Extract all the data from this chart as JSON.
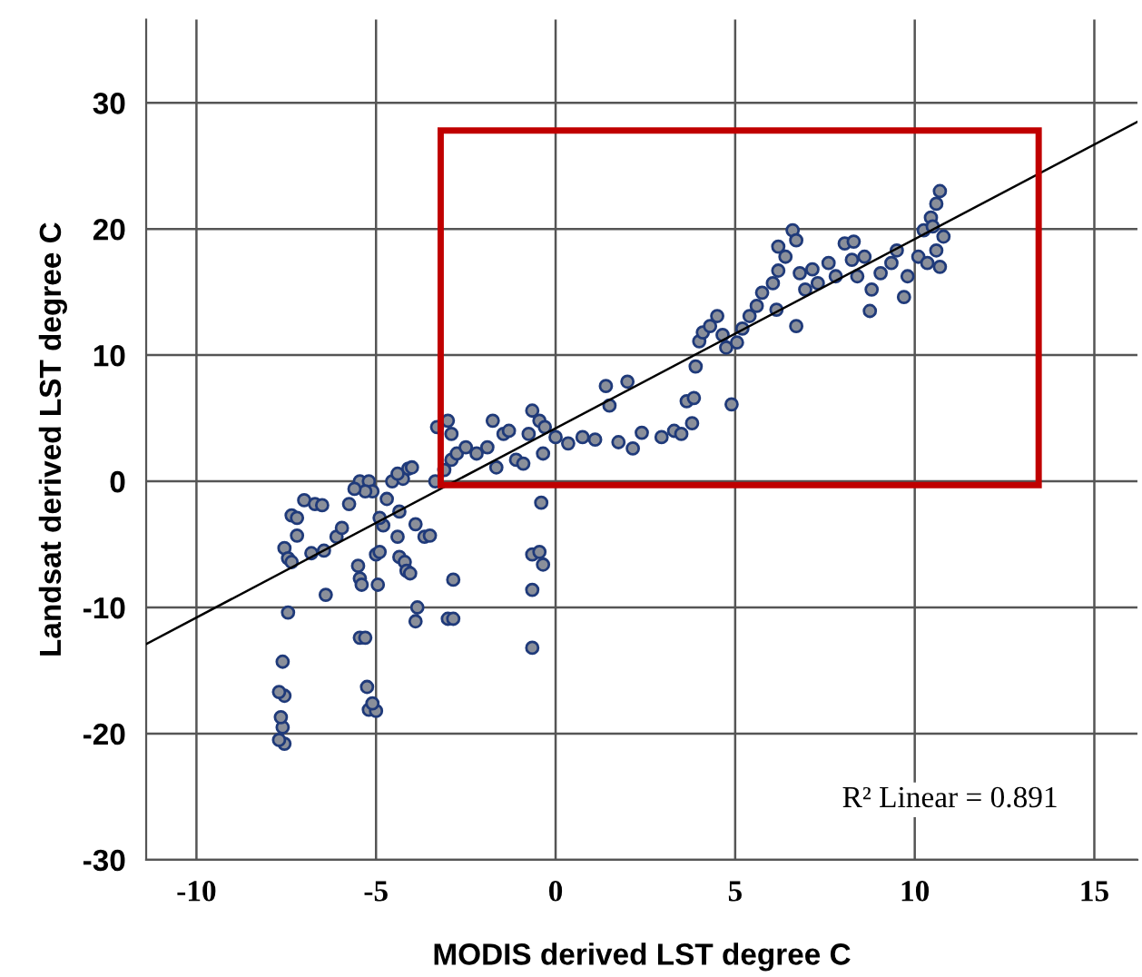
{
  "chart_data": {
    "type": "scatter",
    "xlabel": "MODIS derived LST degree C",
    "ylabel": "Landsat derived LST degree C",
    "xlim": [
      -11.4,
      16.2
    ],
    "ylim": [
      -30,
      36.6
    ],
    "xticks": [
      -10,
      -5,
      0,
      5,
      10,
      15
    ],
    "yticks": [
      -30,
      -20,
      -10,
      0,
      10,
      20,
      30
    ],
    "grid": true,
    "legend": false,
    "annotations": [
      "R² Linear = 0.891"
    ],
    "series": [
      {
        "marker": "circle",
        "color": "#1f3a7a",
        "x": [
          -7.55,
          -7.7,
          -7.6,
          -7.65,
          -7.55,
          -7.7,
          -7.6,
          -7.45,
          -7.55,
          -7.45,
          -7.35,
          -7.35,
          -7.2,
          -7.2,
          -7.0,
          -6.7,
          -6.5,
          -6.8,
          -6.45,
          -6.4,
          -6.1,
          -5.95,
          -5.75,
          -5.5,
          -5.45,
          -5.4,
          -5.45,
          -5.3,
          -5.25,
          -5.2,
          -5.0,
          -5.1,
          -4.95,
          -5.0,
          -4.9,
          -4.8,
          -4.4,
          -4.35,
          -4.2,
          -4.15,
          -4.05,
          -3.9,
          -3.85,
          -3.9,
          -3.65,
          -3.5,
          -2.85,
          -3.0,
          -2.85,
          -0.4,
          -0.65,
          -0.45,
          -0.35,
          -0.65,
          -0.65,
          -5.45,
          -5.2,
          -5.1,
          -4.7,
          -4.55,
          -4.25,
          -4.1,
          -4.35,
          -4.9,
          -5.3,
          -5.6,
          -3.35,
          -4.4,
          -4.0,
          -3.3,
          -3.0,
          -2.9,
          -2.9,
          -3.1,
          -2.75,
          -2.5,
          -2.2,
          -1.9,
          -1.75,
          -1.65,
          -1.45,
          -1.3,
          -1.1,
          -0.9,
          -0.75,
          -0.65,
          -0.45,
          -0.35,
          -0.3,
          0.0,
          0.35,
          0.75,
          1.1,
          1.4,
          1.5,
          1.75,
          2.0,
          2.15,
          2.4,
          2.95,
          3.3,
          3.5,
          3.65,
          3.8,
          3.85,
          3.9,
          4.0,
          4.1,
          4.3,
          4.5,
          4.65,
          4.75,
          4.9,
          5.05,
          5.2,
          5.4,
          5.6,
          5.75,
          6.05,
          6.15,
          6.2,
          6.2,
          6.4,
          6.6,
          6.7,
          6.7,
          6.8,
          6.95,
          7.15,
          7.3,
          7.6,
          7.8,
          8.05,
          8.25,
          8.3,
          8.4,
          8.6,
          8.75,
          8.8,
          9.05,
          9.35,
          9.5,
          9.7,
          9.8,
          10.1,
          10.25,
          10.35,
          10.45,
          10.6,
          10.7,
          10.6,
          10.8,
          10.7,
          10.5
        ],
        "values": [
          -20.8,
          -20.5,
          -19.5,
          -18.7,
          -17.0,
          -16.7,
          -14.3,
          -10.4,
          -5.3,
          -6.1,
          -6.4,
          -2.7,
          -2.9,
          -4.3,
          -1.5,
          -1.8,
          -1.9,
          -5.7,
          -5.5,
          -9.0,
          -4.4,
          -3.7,
          -1.8,
          -6.7,
          -7.7,
          -8.2,
          -12.4,
          -12.4,
          -16.3,
          -18.1,
          -18.2,
          -17.6,
          -8.2,
          -5.8,
          -5.6,
          -3.5,
          -4.4,
          -6.0,
          -6.4,
          -7.1,
          -7.3,
          -11.1,
          -10.0,
          -3.4,
          -4.4,
          -4.3,
          -7.8,
          -10.9,
          -10.9,
          -1.7,
          -5.8,
          -5.6,
          -6.6,
          -8.6,
          -13.2,
          0.0,
          0.0,
          -0.8,
          -1.4,
          0.0,
          0.2,
          1.0,
          -2.4,
          -2.9,
          -0.8,
          -0.6,
          0.0,
          0.6,
          1.1,
          4.3,
          4.8,
          3.75,
          1.7,
          0.9,
          2.2,
          2.7,
          2.2,
          2.7,
          4.8,
          1.1,
          3.75,
          4.0,
          1.7,
          1.4,
          3.75,
          5.6,
          4.8,
          2.2,
          4.3,
          3.5,
          3.0,
          3.5,
          3.3,
          7.55,
          6.0,
          3.1,
          7.9,
          2.6,
          3.85,
          3.5,
          4.0,
          3.75,
          6.35,
          4.6,
          6.6,
          9.1,
          11.1,
          11.8,
          12.3,
          13.1,
          11.6,
          10.6,
          6.1,
          11.0,
          12.1,
          13.1,
          13.9,
          14.95,
          15.7,
          13.6,
          16.7,
          18.6,
          17.8,
          19.9,
          19.1,
          12.3,
          16.5,
          15.2,
          16.8,
          15.7,
          17.3,
          16.25,
          18.85,
          17.55,
          19.0,
          16.25,
          17.8,
          13.5,
          15.2,
          16.5,
          17.3,
          18.3,
          14.6,
          16.25,
          17.8,
          19.9,
          17.3,
          20.9,
          22.0,
          23.0,
          18.3,
          19.4,
          17.0,
          20.2
        ]
      },
      {
        "type": "line",
        "color": "#000000",
        "x": [
          -11.4,
          16.2
        ],
        "values": [
          -12.9,
          28.5
        ]
      }
    ]
  }
}
